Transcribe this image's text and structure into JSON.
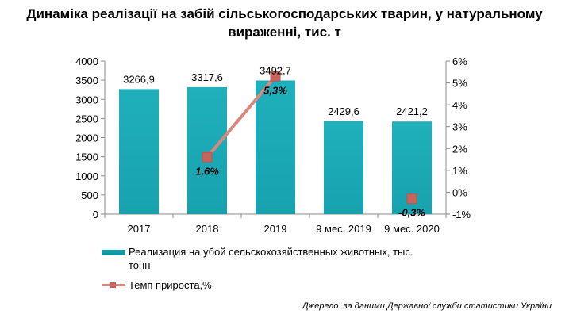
{
  "title_line1": "Динаміка реалізації на забій сільськогосподарських тварин, у натуральному",
  "title_line2": "вираженні, тис. т",
  "source": "Джерело: за даними Державної служби статистики України",
  "colors": {
    "bar": "#17a2ae",
    "line": "#d98880",
    "marker": "#c8645c"
  },
  "chart_data": {
    "type": "bar",
    "categories": [
      "2017",
      "2018",
      "2019",
      "9 мес. 2019",
      "9 мес. 2020"
    ],
    "series": [
      {
        "name": "Реализация на убой сельскохозяйственных животных, тыс. тонн",
        "type": "bar",
        "axis": "left",
        "values": [
          3266.9,
          3317.6,
          3492.7,
          2429.6,
          2421.2
        ],
        "labels": [
          "3266,9",
          "3317,6",
          "3492,7",
          "2429,6",
          "2421,2"
        ]
      },
      {
        "name": "Темп прироста,%",
        "type": "line",
        "axis": "right",
        "values": [
          null,
          1.6,
          5.3,
          null,
          -0.3
        ],
        "labels": [
          "",
          "1,6%",
          "5,3%",
          "",
          "-0,3%"
        ]
      }
    ],
    "y_left": {
      "min": 0,
      "max": 4000,
      "ticks": [
        "0",
        "500",
        "1000",
        "1500",
        "2000",
        "2500",
        "3000",
        "3500",
        "4000"
      ]
    },
    "y_right": {
      "min": -1,
      "max": 6,
      "ticks": [
        "-1%",
        "0%",
        "1%",
        "2%",
        "3%",
        "4%",
        "5%",
        "6%"
      ]
    },
    "legend": {
      "bar_line1": "Реализация на убой сельскохозяйственных животных, тыс.",
      "bar_line2": "тонн",
      "line_label": "Темп прироста,%",
      "position": "bottom-left"
    }
  }
}
